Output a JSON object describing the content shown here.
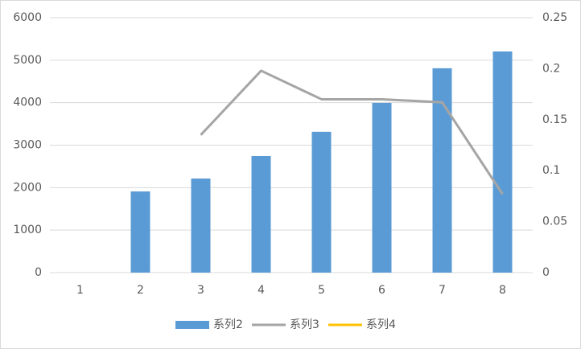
{
  "chart_data": {
    "type": "bar_line",
    "categories": [
      "1",
      "2",
      "3",
      "4",
      "5",
      "6",
      "7",
      "8"
    ],
    "series": [
      {
        "name": "系列2",
        "type": "bar",
        "color": "#5b9bd5",
        "values": [
          null,
          1910,
          2215,
          2745,
          3315,
          3995,
          4810,
          5205
        ]
      },
      {
        "name": "系列3",
        "type": "line",
        "axis": "y2",
        "color": "#a5a5a5",
        "values": [
          null,
          null,
          0.135,
          0.198,
          0.17,
          0.17,
          0.167,
          0.077
        ]
      },
      {
        "name": "系列4",
        "type": "line",
        "axis": "y2",
        "color": "#ffc000",
        "values": [
          null,
          null,
          null,
          null,
          null,
          null,
          null,
          null
        ]
      }
    ],
    "ylim": [
      0,
      6000
    ],
    "yticks": [
      0,
      1000,
      2000,
      3000,
      4000,
      5000,
      6000
    ],
    "y2lim": [
      0,
      0.25
    ],
    "y2ticks": [
      0,
      0.05,
      0.1,
      0.15,
      0.2,
      0.25
    ],
    "grid": true,
    "legend": "bottom"
  }
}
